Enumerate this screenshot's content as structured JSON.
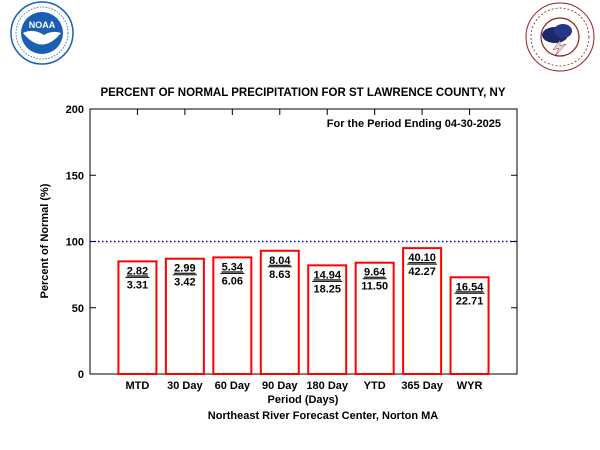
{
  "logos": {
    "left": {
      "name": "noaa-logo",
      "text": "NOAA",
      "ring_text": "NATIONAL OCEANIC AND ATMOSPHERIC ADMINISTRATION",
      "ring_text_bottom": "U.S. DEPARTMENT OF COMMERCE",
      "color": "#1a5fb4"
    },
    "right": {
      "name": "nws-logo",
      "ring_text": "NATIONAL WEATHER SERVICE",
      "color": "#8b2020"
    }
  },
  "chart_data": {
    "type": "bar",
    "title": "PERCENT OF NORMAL PRECIPITATION FOR ST LAWRENCE COUNTY, NY",
    "annotation": "For the Period Ending 04-30-2025",
    "xlabel": "Period (Days)",
    "ylabel": "Percent of Normal (%)",
    "footer": "Northeast River Forecast Center, Norton MA",
    "ylim": [
      0,
      200
    ],
    "yticks": [
      0,
      50,
      100,
      150,
      200
    ],
    "reference_line": {
      "value": 100,
      "style": "dotted",
      "color": "#0000cc"
    },
    "bar_color": "#ff0000",
    "categories": [
      "MTD",
      "30 Day",
      "60 Day",
      "90 Day",
      "180 Day",
      "YTD",
      "365 Day",
      "WYR"
    ],
    "values": [
      85,
      87,
      88,
      93,
      82,
      84,
      95,
      73
    ],
    "observed": [
      "2.82",
      "2.99",
      "5.34",
      "8.04",
      "14.94",
      "9.64",
      "40.10",
      "16.54"
    ],
    "normal": [
      "3.31",
      "3.42",
      "6.06",
      "8.63",
      "18.25",
      "11.50",
      "42.27",
      "22.71"
    ]
  }
}
